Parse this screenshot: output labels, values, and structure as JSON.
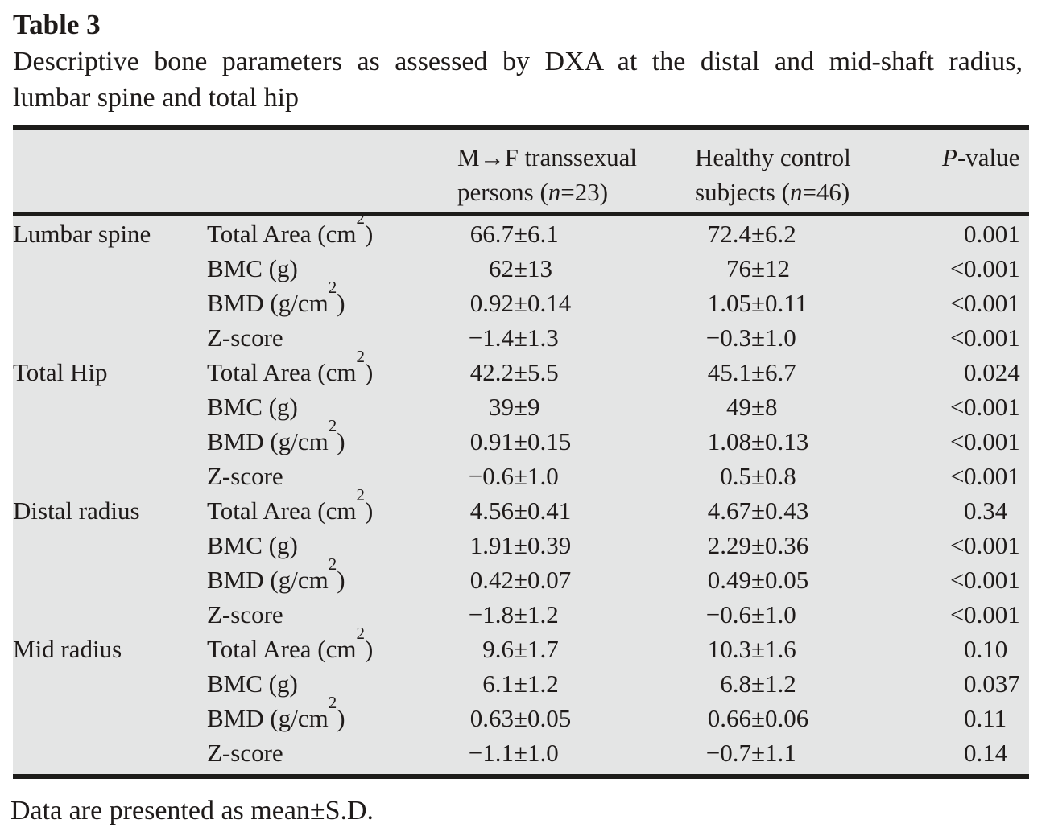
{
  "title": "Table 3",
  "caption_line1": "Descriptive bone parameters as assessed by DXA at the distal and mid-shaft radius,",
  "caption_line2": "lumbar spine and total hip",
  "footer": "Data are presented as mean±S.D.",
  "symbols": {
    "pm": "±"
  },
  "colors": {
    "table_background": "#e4e5e5",
    "rule": "#1d1c1a",
    "text": "#1f1b1a",
    "page_background": "#ffffff"
  },
  "header": {
    "col_mf": {
      "line1": "M→F transsexual",
      "line2_pre": "persons (",
      "line2_n": "n",
      "line2_post": "=23)"
    },
    "col_hc": {
      "line1": "Healthy control",
      "line2_pre": "subjects (",
      "line2_n": "n",
      "line2_post": "=46)"
    },
    "col_p": {
      "italic": "P",
      "rest": "-value"
    }
  },
  "groups": [
    {
      "name": "Lumbar spine",
      "rows": [
        {
          "param_pre": "Total Area (cm",
          "param_sup": "2",
          "param_post": ")",
          "mf_m": "66.7",
          "mf_s": "6.1",
          "hc_m": "72.4",
          "hc_s": "6.2",
          "p_lt": "",
          "p_val": "0.001"
        },
        {
          "param_pre": "BMC (g)",
          "param_sup": "",
          "param_post": "",
          "mf_m": "62",
          "mf_s": "13",
          "hc_m": "76",
          "hc_s": "12",
          "p_lt": "<",
          "p_val": "0.001"
        },
        {
          "param_pre": "BMD (g/cm",
          "param_sup": "2",
          "param_post": ")",
          "mf_m": "0.92",
          "mf_s": "0.14",
          "hc_m": "1.05",
          "hc_s": "0.11",
          "p_lt": "<",
          "p_val": "0.001"
        },
        {
          "param_pre": "Z-score",
          "param_sup": "",
          "param_post": "",
          "mf_m": "−1.4",
          "mf_s": "1.3",
          "hc_m": "−0.3",
          "hc_s": "1.0",
          "p_lt": "<",
          "p_val": "0.001"
        }
      ]
    },
    {
      "name": "Total Hip",
      "rows": [
        {
          "param_pre": "Total Area (cm",
          "param_sup": "2",
          "param_post": ")",
          "mf_m": "42.2",
          "mf_s": "5.5",
          "hc_m": "45.1",
          "hc_s": "6.7",
          "p_lt": "",
          "p_val": "0.024"
        },
        {
          "param_pre": "BMC (g)",
          "param_sup": "",
          "param_post": "",
          "mf_m": "39",
          "mf_s": "9",
          "hc_m": "49",
          "hc_s": "8",
          "p_lt": "<",
          "p_val": "0.001"
        },
        {
          "param_pre": "BMD (g/cm",
          "param_sup": "2",
          "param_post": ")",
          "mf_m": "0.91",
          "mf_s": "0.15",
          "hc_m": "1.08",
          "hc_s": "0.13",
          "p_lt": "<",
          "p_val": "0.001"
        },
        {
          "param_pre": "Z-score",
          "param_sup": "",
          "param_post": "",
          "mf_m": "−0.6",
          "mf_s": "1.0",
          "hc_m": "0.5",
          "hc_s": "0.8",
          "p_lt": "<",
          "p_val": "0.001"
        }
      ]
    },
    {
      "name": "Distal radius",
      "rows": [
        {
          "param_pre": "Total Area (cm",
          "param_sup": "2",
          "param_post": ")",
          "mf_m": "4.56",
          "mf_s": "0.41",
          "hc_m": "4.67",
          "hc_s": "0.43",
          "p_lt": "",
          "p_val": "0.34"
        },
        {
          "param_pre": "BMC (g)",
          "param_sup": "",
          "param_post": "",
          "mf_m": "1.91",
          "mf_s": "0.39",
          "hc_m": "2.29",
          "hc_s": "0.36",
          "p_lt": "<",
          "p_val": "0.001"
        },
        {
          "param_pre": "BMD (g/cm",
          "param_sup": "2",
          "param_post": ")",
          "mf_m": "0.42",
          "mf_s": "0.07",
          "hc_m": "0.49",
          "hc_s": "0.05",
          "p_lt": "<",
          "p_val": "0.001"
        },
        {
          "param_pre": "Z-score",
          "param_sup": "",
          "param_post": "",
          "mf_m": "−1.8",
          "mf_s": "1.2",
          "hc_m": "−0.6",
          "hc_s": "1.0",
          "p_lt": "<",
          "p_val": "0.001"
        }
      ]
    },
    {
      "name": "Mid radius",
      "rows": [
        {
          "param_pre": "Total Area (cm",
          "param_sup": "2",
          "param_post": ")",
          "mf_m": "9.6",
          "mf_s": "1.7",
          "hc_m": "10.3",
          "hc_s": "1.6",
          "p_lt": "",
          "p_val": "0.10"
        },
        {
          "param_pre": "BMC (g)",
          "param_sup": "",
          "param_post": "",
          "mf_m": "6.1",
          "mf_s": "1.2",
          "hc_m": "6.8",
          "hc_s": "1.2",
          "p_lt": "",
          "p_val": "0.037"
        },
        {
          "param_pre": "BMD (g/cm",
          "param_sup": "2",
          "param_post": ")",
          "mf_m": "0.63",
          "mf_s": "0.05",
          "hc_m": "0.66",
          "hc_s": "0.06",
          "p_lt": "",
          "p_val": "0.11"
        },
        {
          "param_pre": "Z-score",
          "param_sup": "",
          "param_post": "",
          "mf_m": "−1.1",
          "mf_s": "1.0",
          "hc_m": "−0.7",
          "hc_s": "1.1",
          "p_lt": "",
          "p_val": "0.14"
        }
      ]
    }
  ]
}
